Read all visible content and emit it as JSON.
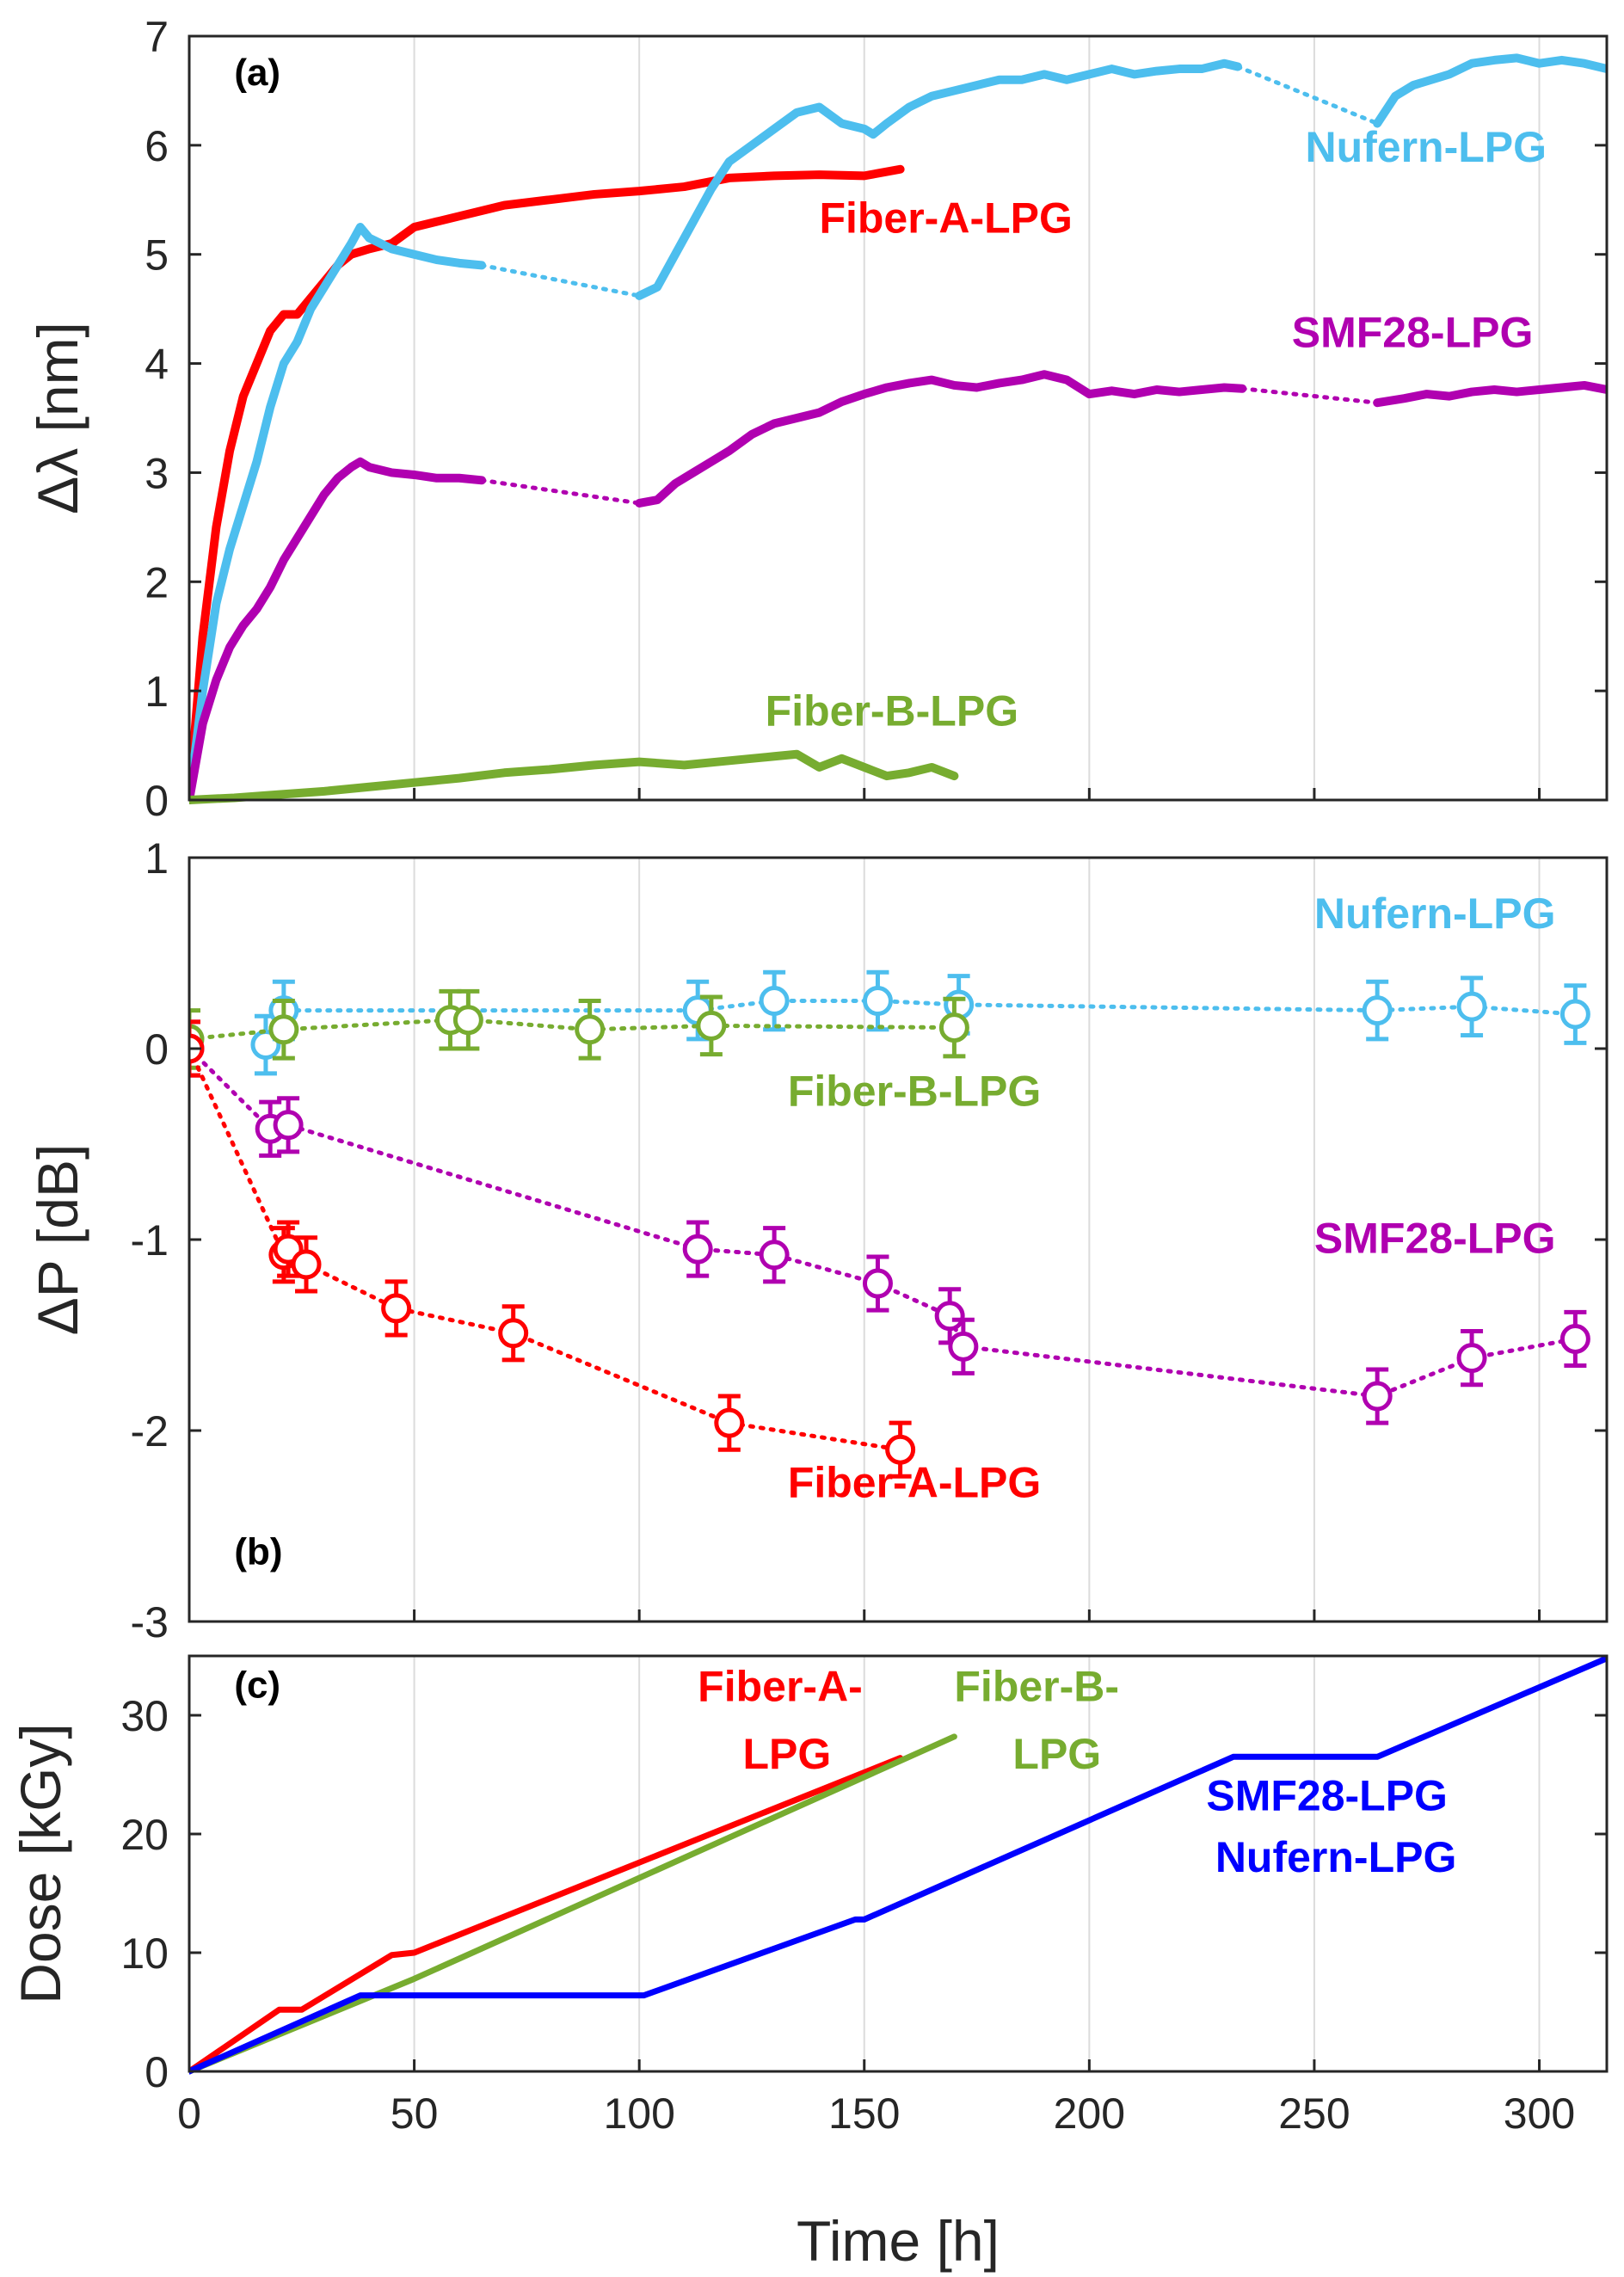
{
  "chart_data": [
    {
      "type": "line",
      "panel": "(a)",
      "ylabel": "Δλ [nm]",
      "xlabel": "",
      "xlim": [
        0,
        315
      ],
      "ylim": [
        0,
        7
      ],
      "xticks": [
        50,
        100,
        150,
        200,
        250,
        300
      ],
      "yticks": [
        0,
        1,
        2,
        3,
        4,
        5,
        6,
        7
      ],
      "ytick_labels": [
        "0",
        "1",
        "2",
        "3",
        "4",
        "5",
        "6",
        "7"
      ],
      "grid": "vertical",
      "series": [
        {
          "name": "Fiber-A-LPG",
          "color": "#ff0000",
          "segments": [
            {
              "style": "solid",
              "x": [
                0,
                3,
                6,
                9,
                12,
                15,
                18,
                21,
                24,
                27,
                30,
                33,
                36,
                40,
                45,
                50,
                55,
                60,
                70,
                80,
                90,
                100,
                110,
                120,
                130,
                140,
                150,
                158
              ],
              "y": [
                0,
                1.5,
                2.5,
                3.2,
                3.7,
                4.0,
                4.3,
                4.45,
                4.45,
                4.6,
                4.75,
                4.9,
                5.0,
                5.05,
                5.1,
                5.25,
                5.3,
                5.35,
                5.45,
                5.5,
                5.55,
                5.58,
                5.62,
                5.7,
                5.72,
                5.73,
                5.72,
                5.78
              ]
            }
          ]
        },
        {
          "name": "Nufern-LPG",
          "color": "#4dbeee",
          "segments": [
            {
              "style": "solid",
              "x": [
                0,
                3,
                6,
                9,
                12,
                15,
                18,
                21,
                24,
                27,
                30,
                33,
                36,
                38,
                40,
                45,
                50,
                55,
                60,
                65
              ],
              "y": [
                0,
                1.0,
                1.8,
                2.3,
                2.7,
                3.1,
                3.6,
                4.0,
                4.2,
                4.5,
                4.7,
                4.9,
                5.1,
                5.25,
                5.15,
                5.05,
                5.0,
                4.95,
                4.92,
                4.9
              ]
            },
            {
              "style": "dotted",
              "x": [
                65,
                100
              ],
              "y": [
                4.9,
                4.62
              ]
            },
            {
              "style": "solid",
              "x": [
                100,
                104,
                108,
                112,
                116,
                120,
                125,
                130,
                135,
                140,
                145,
                150,
                152,
                155,
                160,
                165,
                170,
                175,
                180,
                185,
                190,
                195,
                200,
                205,
                210,
                215,
                220,
                225,
                230,
                233
              ],
              "y": [
                4.62,
                4.7,
                5.0,
                5.3,
                5.6,
                5.85,
                6.0,
                6.15,
                6.3,
                6.35,
                6.2,
                6.15,
                6.1,
                6.2,
                6.35,
                6.45,
                6.5,
                6.55,
                6.6,
                6.6,
                6.65,
                6.6,
                6.65,
                6.7,
                6.65,
                6.68,
                6.7,
                6.7,
                6.75,
                6.72
              ]
            },
            {
              "style": "dotted",
              "x": [
                233,
                264
              ],
              "y": [
                6.72,
                6.2
              ]
            },
            {
              "style": "solid",
              "x": [
                264,
                268,
                272,
                276,
                280,
                285,
                290,
                295,
                300,
                305,
                310,
                315
              ],
              "y": [
                6.2,
                6.45,
                6.55,
                6.6,
                6.65,
                6.75,
                6.78,
                6.8,
                6.75,
                6.78,
                6.75,
                6.7
              ]
            }
          ]
        },
        {
          "name": "SMF28-LPG",
          "color": "#b000b0",
          "segments": [
            {
              "style": "solid",
              "x": [
                0,
                3,
                6,
                9,
                12,
                15,
                18,
                21,
                24,
                27,
                30,
                33,
                36,
                38,
                40,
                45,
                50,
                55,
                60,
                65
              ],
              "y": [
                0,
                0.7,
                1.1,
                1.4,
                1.6,
                1.75,
                1.95,
                2.2,
                2.4,
                2.6,
                2.8,
                2.95,
                3.05,
                3.1,
                3.05,
                3.0,
                2.98,
                2.95,
                2.95,
                2.93
              ]
            },
            {
              "style": "dotted",
              "x": [
                65,
                100
              ],
              "y": [
                2.93,
                2.72
              ]
            },
            {
              "style": "solid",
              "x": [
                100,
                104,
                108,
                112,
                116,
                120,
                125,
                130,
                135,
                140,
                145,
                150,
                155,
                160,
                165,
                170,
                175,
                180,
                185,
                190,
                195,
                200,
                205,
                210,
                215,
                220,
                225,
                230,
                234
              ],
              "y": [
                2.72,
                2.75,
                2.9,
                3.0,
                3.1,
                3.2,
                3.35,
                3.45,
                3.5,
                3.55,
                3.65,
                3.72,
                3.78,
                3.82,
                3.85,
                3.8,
                3.78,
                3.82,
                3.85,
                3.9,
                3.85,
                3.72,
                3.75,
                3.72,
                3.76,
                3.74,
                3.76,
                3.78,
                3.77
              ]
            },
            {
              "style": "dotted",
              "x": [
                234,
                264
              ],
              "y": [
                3.77,
                3.64
              ]
            },
            {
              "style": "solid",
              "x": [
                264,
                270,
                275,
                280,
                285,
                290,
                295,
                300,
                305,
                310,
                315
              ],
              "y": [
                3.64,
                3.68,
                3.72,
                3.7,
                3.74,
                3.76,
                3.74,
                3.76,
                3.78,
                3.8,
                3.76
              ]
            }
          ]
        },
        {
          "name": "Fiber-B-LPG",
          "color": "#77ac30",
          "segments": [
            {
              "style": "solid",
              "x": [
                0,
                10,
                20,
                30,
                40,
                50,
                60,
                70,
                80,
                90,
                100,
                110,
                120,
                130,
                135,
                140,
                145,
                150,
                155,
                160,
                165,
                170
              ],
              "y": [
                0,
                0.02,
                0.05,
                0.08,
                0.12,
                0.16,
                0.2,
                0.25,
                0.28,
                0.32,
                0.35,
                0.32,
                0.36,
                0.4,
                0.42,
                0.3,
                0.38,
                0.3,
                0.22,
                0.25,
                0.3,
                0.22
              ]
            }
          ]
        }
      ],
      "annotations": [
        {
          "text": "(a)",
          "x": 10,
          "y": 6.55
        },
        {
          "text": "Fiber-A-LPG",
          "x": 140,
          "y": 5.2,
          "color": "#ff0000"
        },
        {
          "text": "Nufern-LPG",
          "x": 248,
          "y": 5.85,
          "color": "#4dbeee"
        },
        {
          "text": "SMF28-LPG",
          "x": 245,
          "y": 4.15,
          "color": "#b000b0"
        },
        {
          "text": "Fiber-B-LPG",
          "x": 128,
          "y": 0.68,
          "color": "#77ac30"
        }
      ]
    },
    {
      "type": "scatter",
      "panel": "(b)",
      "ylabel": "ΔP [dB]",
      "xlabel": "",
      "xlim": [
        0,
        315
      ],
      "ylim": [
        -3,
        1
      ],
      "xticks": [
        50,
        100,
        150,
        200,
        250,
        300
      ],
      "yticks": [
        -3,
        -2,
        -1,
        0,
        1
      ],
      "ytick_labels": [
        "-3",
        "-2",
        "-1",
        "0",
        "1"
      ],
      "grid": "vertical",
      "series": [
        {
          "name": "Nufern-LPG",
          "color": "#4dbeee",
          "error": 0.15,
          "x": [
            17,
            21,
            113,
            130,
            153,
            171,
            264,
            285,
            308
          ],
          "y": [
            0.02,
            0.2,
            0.2,
            0.25,
            0.25,
            0.23,
            0.2,
            0.22,
            0.18
          ]
        },
        {
          "name": "Fiber-B-LPG",
          "color": "#77ac30",
          "error": 0.15,
          "x": [
            0,
            21,
            58,
            62,
            89,
            116,
            170
          ],
          "y": [
            0.05,
            0.1,
            0.15,
            0.15,
            0.1,
            0.12,
            0.11
          ]
        },
        {
          "name": "SMF28-LPG",
          "color": "#b000b0",
          "error": 0.14,
          "x": [
            0,
            18,
            22,
            113,
            130,
            153,
            169,
            172,
            264,
            285,
            308
          ],
          "y": [
            0,
            -0.42,
            -0.4,
            -1.05,
            -1.08,
            -1.23,
            -1.4,
            -1.56,
            -1.82,
            -1.62,
            -1.52
          ]
        },
        {
          "name": "Fiber-A-LPG",
          "color": "#ff0000",
          "error": 0.14,
          "x": [
            0,
            21,
            22,
            26,
            46,
            72,
            120,
            158
          ],
          "y": [
            0,
            -1.08,
            -1.05,
            -1.13,
            -1.36,
            -1.49,
            -1.96,
            -2.1
          ]
        }
      ],
      "annotations": [
        {
          "text": "(b)",
          "x": 10,
          "y": -2.7
        },
        {
          "text": "Nufern-LPG",
          "x": 250,
          "y": 0.63,
          "color": "#4dbeee"
        },
        {
          "text": "Fiber-B-LPG",
          "x": 133,
          "y": -0.3,
          "color": "#77ac30"
        },
        {
          "text": "SMF28-LPG",
          "x": 250,
          "y": -1.07,
          "color": "#b000b0"
        },
        {
          "text": "Fiber-A-LPG",
          "x": 133,
          "y": -2.35,
          "color": "#ff0000"
        }
      ]
    },
    {
      "type": "line",
      "panel": "(c)",
      "ylabel": "Dose [kGy]",
      "xlabel": "Time [h]",
      "xlim": [
        0,
        315
      ],
      "ylim": [
        0,
        35
      ],
      "xticks": [
        0,
        50,
        100,
        150,
        200,
        250,
        300
      ],
      "xtick_labels": [
        "0",
        "50",
        "100",
        "150",
        "200",
        "250",
        "300"
      ],
      "yticks": [
        0,
        10,
        20,
        30
      ],
      "ytick_labels": [
        "0",
        "10",
        "20",
        "30"
      ],
      "grid": "vertical",
      "series": [
        {
          "name": "Fiber-A-LPG",
          "color": "#ff0000",
          "x": [
            0,
            20,
            25,
            45,
            50,
            158
          ],
          "y": [
            0,
            5.2,
            5.2,
            9.8,
            10,
            26.4
          ]
        },
        {
          "name": "Fiber-B-LPG",
          "color": "#77ac30",
          "x": [
            0,
            50,
            170
          ],
          "y": [
            0,
            7.8,
            28.2
          ]
        },
        {
          "name": "SMF28-LPG / Nufern-LPG",
          "color": "#0000ff",
          "x": [
            0,
            38,
            101,
            148,
            150,
            232,
            264,
            315
          ],
          "y": [
            0,
            6.4,
            6.4,
            12.8,
            12.8,
            26.5,
            26.5,
            34.8
          ]
        }
      ],
      "annotations": [
        {
          "text": "(c)",
          "x": 10,
          "y": 31.5
        },
        {
          "text": "Fiber-A-",
          "x": 113,
          "y": 31.2,
          "color": "#ff0000"
        },
        {
          "text": "LPG",
          "x": 123,
          "y": 25.5,
          "color": "#ff0000"
        },
        {
          "text": "Fiber-B-",
          "x": 170,
          "y": 31.2,
          "color": "#77ac30"
        },
        {
          "text": "LPG",
          "x": 183,
          "y": 25.5,
          "color": "#77ac30"
        },
        {
          "text": "SMF28-LPG",
          "x": 226,
          "y": 22.0,
          "color": "#0000ff"
        },
        {
          "text": "Nufern-LPG",
          "x": 228,
          "y": 16.8,
          "color": "#0000ff"
        }
      ]
    }
  ]
}
